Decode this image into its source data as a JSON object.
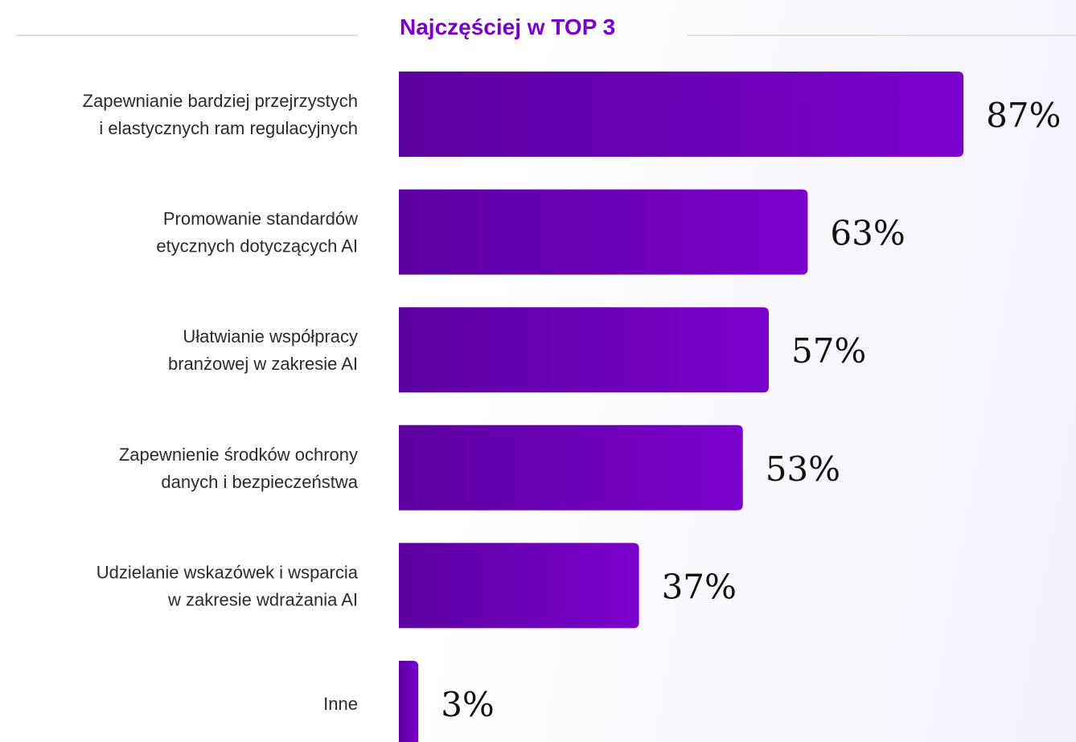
{
  "chart_data": {
    "type": "bar",
    "orientation": "horizontal",
    "title": "Najczęściej w TOP 3",
    "categories": [
      "Zapewnianie bardziej przejrzystych\ni elastycznych ram regulacyjnych",
      "Promowanie standardów\netycznych dotyczących AI",
      "Ułatwianie współpracy\nbranżowej w zakresie AI",
      "Zapewnienie środków ochrony\ndanych i bezpieczeństwa",
      "Udzielanie wskazówek i wsparcia\nw zakresie wdrażania AI",
      "Inne"
    ],
    "values": [
      87,
      63,
      57,
      53,
      37,
      3
    ],
    "value_labels": [
      "87%",
      "63%",
      "57%",
      "53%",
      "37%",
      "3%"
    ],
    "color": "#6e00bb"
  }
}
